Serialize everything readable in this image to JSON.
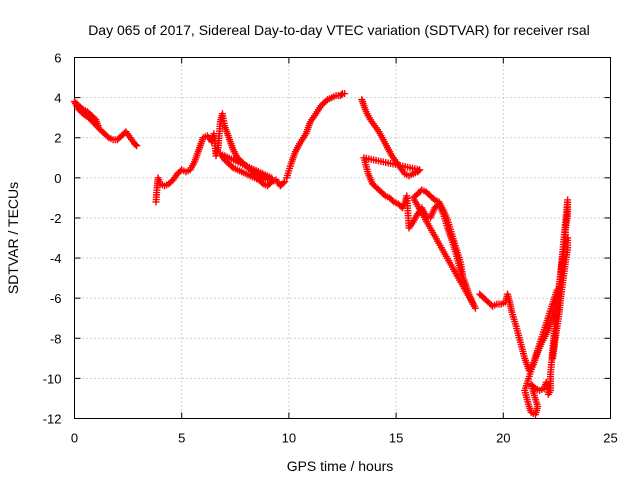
{
  "chart_data": {
    "type": "scatter",
    "title": "Day 065 of 2017, Sidereal Day-to-day VTEC variation (SDTVAR) for receiver rsal",
    "xlabel": "GPS time / hours",
    "ylabel": "SDTVAR / TECUs",
    "xlim": [
      0,
      25
    ],
    "ylim": [
      -12,
      6
    ],
    "xticks": [
      0,
      5,
      10,
      15,
      20,
      25
    ],
    "yticks": [
      -12,
      -10,
      -8,
      -6,
      -4,
      -2,
      0,
      2,
      4,
      6
    ],
    "grid": true,
    "marker": "+",
    "color": "#ff0000",
    "series": [
      {
        "points": [
          [
            0.0,
            3.8
          ],
          [
            0.2,
            3.6
          ],
          [
            0.4,
            3.4
          ],
          [
            0.6,
            3.3
          ],
          [
            0.8,
            3.1
          ],
          [
            1.0,
            2.9
          ],
          [
            1.1,
            2.6
          ],
          [
            1.0,
            2.8
          ],
          [
            0.8,
            2.95
          ],
          [
            0.6,
            3.05
          ],
          [
            0.4,
            3.2
          ],
          [
            0.2,
            3.4
          ],
          [
            0.05,
            3.7
          ],
          [
            1.2,
            2.4
          ],
          [
            1.4,
            2.2
          ],
          [
            1.6,
            2.0
          ],
          [
            1.8,
            1.9
          ],
          [
            2.0,
            1.9
          ],
          [
            2.2,
            2.1
          ],
          [
            2.4,
            2.3
          ],
          [
            2.6,
            2.0
          ],
          [
            2.8,
            1.7
          ],
          [
            2.9,
            1.6
          ]
        ]
      },
      {
        "points": [
          [
            3.8,
            -1.2
          ],
          [
            3.85,
            -0.5
          ],
          [
            3.9,
            0.0
          ],
          [
            4.0,
            -0.3
          ],
          [
            4.2,
            -0.4
          ],
          [
            4.4,
            -0.3
          ],
          [
            4.6,
            -0.1
          ],
          [
            4.8,
            0.2
          ],
          [
            5.0,
            0.4
          ],
          [
            5.2,
            0.3
          ],
          [
            5.4,
            0.4
          ],
          [
            5.6,
            0.8
          ],
          [
            5.8,
            1.4
          ],
          [
            6.0,
            2.0
          ],
          [
            6.2,
            2.1
          ],
          [
            6.4,
            1.8
          ],
          [
            6.5,
            2.2
          ],
          [
            6.6,
            1.1
          ],
          [
            6.7,
            1.5
          ],
          [
            6.8,
            2.8
          ],
          [
            6.9,
            3.2
          ],
          [
            7.0,
            2.6
          ],
          [
            7.2,
            2.0
          ],
          [
            7.4,
            1.4
          ],
          [
            7.6,
            1.0
          ],
          [
            7.8,
            0.8
          ],
          [
            8.0,
            0.6
          ],
          [
            8.2,
            0.4
          ],
          [
            8.4,
            0.2
          ],
          [
            8.6,
            0.1
          ],
          [
            8.8,
            0.0
          ],
          [
            9.0,
            -0.1
          ],
          [
            9.2,
            0.0
          ],
          [
            6.8,
            1.2
          ],
          [
            7.0,
            0.9
          ],
          [
            7.2,
            0.7
          ],
          [
            7.4,
            0.5
          ],
          [
            7.6,
            0.4
          ],
          [
            7.8,
            0.3
          ],
          [
            8.0,
            0.2
          ],
          [
            8.2,
            0.1
          ],
          [
            8.4,
            0.0
          ],
          [
            8.6,
            -0.1
          ],
          [
            8.8,
            -0.3
          ],
          [
            9.0,
            -0.4
          ],
          [
            9.2,
            -0.2
          ],
          [
            9.4,
            -0.1
          ],
          [
            9.6,
            -0.4
          ],
          [
            9.8,
            -0.2
          ]
        ]
      },
      {
        "points": [
          [
            9.9,
            0.0
          ],
          [
            10.1,
            0.7
          ],
          [
            10.3,
            1.3
          ],
          [
            10.5,
            1.7
          ],
          [
            10.8,
            2.2
          ],
          [
            11.0,
            2.8
          ],
          [
            11.2,
            3.1
          ],
          [
            11.5,
            3.6
          ],
          [
            11.8,
            3.9
          ],
          [
            12.0,
            4.0
          ],
          [
            12.2,
            4.1
          ],
          [
            12.4,
            4.1
          ],
          [
            12.5,
            4.2
          ],
          [
            12.6,
            4.2
          ]
        ]
      },
      {
        "points": [
          [
            13.4,
            3.9
          ],
          [
            13.6,
            3.3
          ],
          [
            13.8,
            2.9
          ],
          [
            14.0,
            2.6
          ],
          [
            14.2,
            2.3
          ],
          [
            14.4,
            1.9
          ],
          [
            14.6,
            1.5
          ],
          [
            14.8,
            1.1
          ],
          [
            15.0,
            0.8
          ],
          [
            15.2,
            0.5
          ],
          [
            15.4,
            0.2
          ],
          [
            15.6,
            0.1
          ],
          [
            15.8,
            0.2
          ],
          [
            16.0,
            0.3
          ],
          [
            16.1,
            0.4
          ],
          [
            13.5,
            1.0
          ],
          [
            13.7,
            0.2
          ],
          [
            13.9,
            -0.3
          ],
          [
            14.1,
            -0.5
          ],
          [
            14.3,
            -0.7
          ],
          [
            14.5,
            -0.9
          ],
          [
            14.7,
            -1.0
          ],
          [
            14.9,
            -1.2
          ],
          [
            15.1,
            -1.3
          ],
          [
            15.3,
            -1.5
          ],
          [
            15.4,
            -1.3
          ],
          [
            15.5,
            -0.9
          ],
          [
            15.6,
            -2.5
          ],
          [
            15.8,
            -2.2
          ],
          [
            16.0,
            -1.8
          ],
          [
            16.2,
            -1.5
          ],
          [
            16.4,
            -1.9
          ],
          [
            16.6,
            -2.0
          ],
          [
            16.8,
            -1.5
          ],
          [
            17.0,
            -1.3
          ],
          [
            17.2,
            -1.8
          ],
          [
            17.4,
            -2.5
          ],
          [
            17.6,
            -3.1
          ],
          [
            17.8,
            -3.8
          ],
          [
            18.0,
            -4.6
          ],
          [
            18.2,
            -5.2
          ],
          [
            18.4,
            -5.8
          ],
          [
            18.6,
            -6.3
          ],
          [
            18.7,
            -6.5
          ],
          [
            15.8,
            -1.0
          ],
          [
            16.0,
            -0.8
          ],
          [
            16.2,
            -0.6
          ],
          [
            16.4,
            -0.7
          ],
          [
            16.6,
            -0.9
          ],
          [
            16.8,
            -1.1
          ],
          [
            17.0,
            -1.2
          ],
          [
            17.2,
            -1.6
          ],
          [
            17.4,
            -2.1
          ],
          [
            17.6,
            -2.8
          ],
          [
            17.8,
            -3.5
          ],
          [
            18.0,
            -4.2
          ],
          [
            18.1,
            -4.8
          ]
        ]
      },
      {
        "points": [
          [
            18.9,
            -5.8
          ],
          [
            19.1,
            -6.0
          ],
          [
            19.3,
            -6.2
          ],
          [
            19.5,
            -6.4
          ],
          [
            19.7,
            -6.3
          ],
          [
            19.9,
            -6.3
          ],
          [
            20.1,
            -6.2
          ],
          [
            20.2,
            -5.8
          ],
          [
            20.3,
            -6.2
          ],
          [
            20.4,
            -6.7
          ],
          [
            20.6,
            -7.4
          ],
          [
            20.8,
            -8.2
          ],
          [
            21.0,
            -9.0
          ],
          [
            21.2,
            -9.6
          ],
          [
            21.4,
            -9.3
          ],
          [
            21.6,
            -8.7
          ],
          [
            21.8,
            -8.2
          ],
          [
            22.0,
            -7.8
          ],
          [
            22.2,
            -7.2
          ],
          [
            22.4,
            -6.4
          ],
          [
            22.5,
            -5.6
          ],
          [
            21.0,
            -10.6
          ],
          [
            21.2,
            -11.4
          ],
          [
            21.3,
            -11.7
          ],
          [
            21.5,
            -11.8
          ],
          [
            21.6,
            -11.4
          ],
          [
            21.3,
            -10.3
          ],
          [
            21.5,
            -10.5
          ],
          [
            21.7,
            -10.6
          ],
          [
            21.9,
            -10.5
          ],
          [
            22.0,
            -10.2
          ],
          [
            22.1,
            -10.8
          ],
          [
            22.2,
            -10.6
          ],
          [
            22.2,
            -9.8
          ],
          [
            22.3,
            -8.6
          ],
          [
            22.4,
            -7.4
          ],
          [
            22.5,
            -6.4
          ],
          [
            22.6,
            -5.4
          ],
          [
            22.7,
            -4.6
          ],
          [
            22.8,
            -3.8
          ],
          [
            22.9,
            -3.2
          ],
          [
            22.9,
            -2.6
          ],
          [
            23.0,
            -1.8
          ],
          [
            23.0,
            -1.1
          ],
          [
            22.3,
            -9.0
          ],
          [
            22.4,
            -8.2
          ],
          [
            22.5,
            -7.5
          ],
          [
            22.6,
            -6.8
          ],
          [
            22.7,
            -5.8
          ],
          [
            22.8,
            -5.0
          ],
          [
            22.9,
            -4.2
          ],
          [
            23.0,
            -3.6
          ],
          [
            23.0,
            -3.0
          ]
        ]
      }
    ]
  }
}
